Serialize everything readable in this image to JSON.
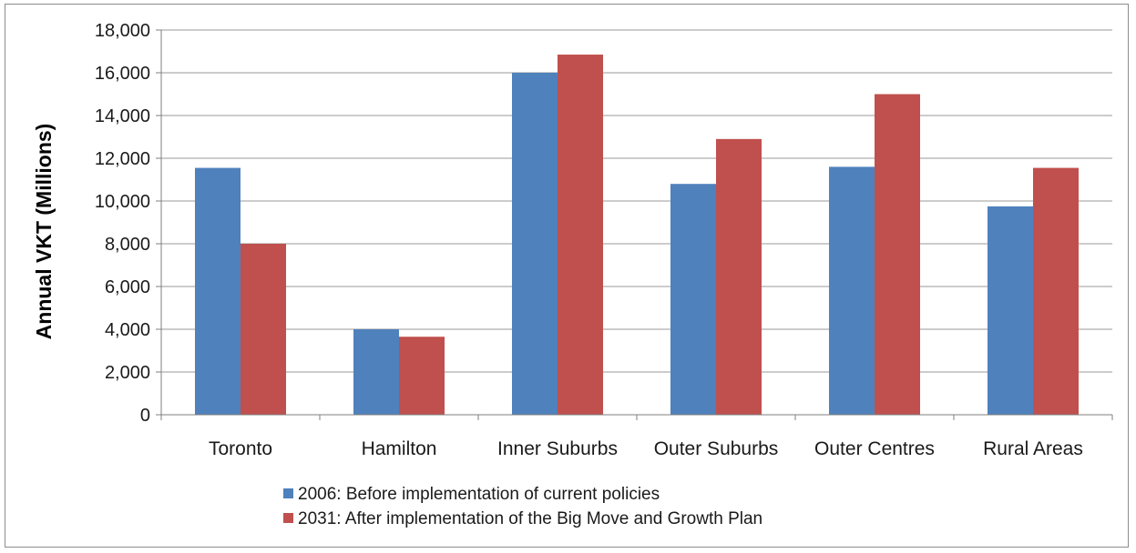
{
  "chart_data": {
    "type": "bar",
    "title": "",
    "xlabel": "",
    "ylabel": "Annual  VKT (Millions)",
    "ylim": [
      0,
      18000
    ],
    "yticks": [
      0,
      2000,
      4000,
      6000,
      8000,
      10000,
      12000,
      14000,
      16000,
      18000
    ],
    "ytick_labels": [
      "0",
      "2,000",
      "4,000",
      "6,000",
      "8,000",
      "10,000",
      "12,000",
      "14,000",
      "16,000",
      "18,000"
    ],
    "grid": true,
    "legend_position": "bottom",
    "categories": [
      "Toronto",
      "Hamilton",
      "Inner Suburbs",
      "Outer Suburbs",
      "Outer Centres",
      "Rural Areas"
    ],
    "series": [
      {
        "name": "2006: Before implementation of current policies",
        "color": "#4f81bd",
        "values": [
          11550,
          4000,
          16000,
          10800,
          11600,
          9750
        ]
      },
      {
        "name": "2031: After implementation of the Big Move and Growth Plan",
        "color": "#c0504d",
        "values": [
          8000,
          3650,
          16850,
          12900,
          15000,
          11550
        ]
      }
    ]
  }
}
